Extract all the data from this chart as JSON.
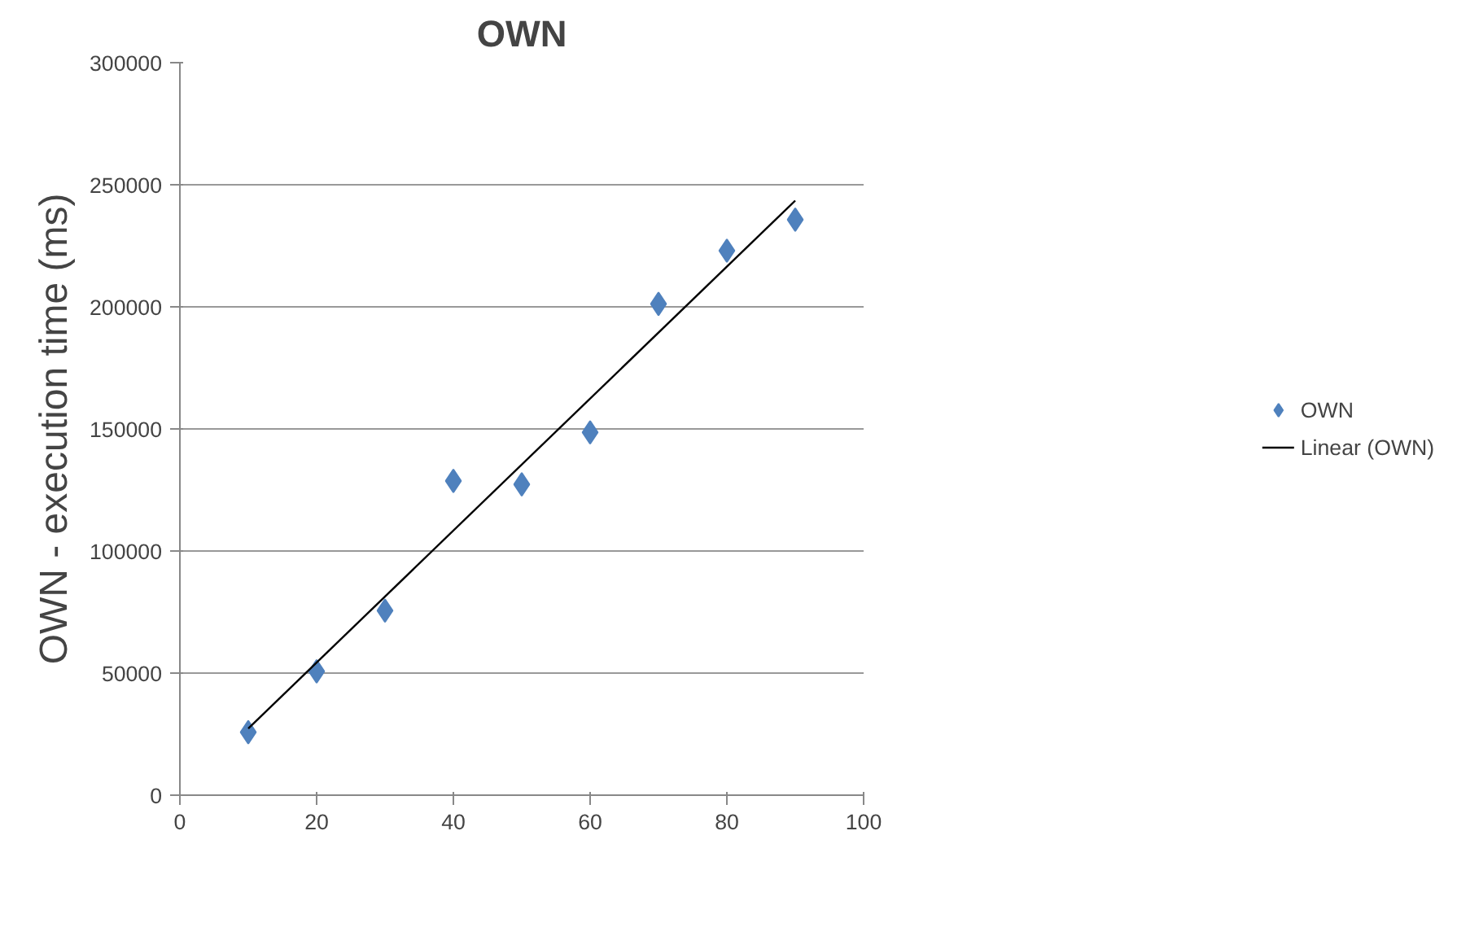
{
  "chart_data": {
    "type": "scatter",
    "title": "OWN",
    "ylabel": "OWN - execution time (ms)",
    "x": [
      10,
      20,
      30,
      40,
      50,
      60,
      70,
      80,
      90
    ],
    "series": [
      {
        "name": "OWN",
        "color": "#4f81bd",
        "marker": "diamond",
        "values": [
          25800,
          50700,
          75600,
          128700,
          127300,
          148600,
          201200,
          223000,
          235700
        ]
      },
      {
        "name": "Linear (OWN)",
        "type": "line",
        "color": "#000000",
        "line_style": "solid",
        "x": [
          10,
          90
        ],
        "values": [
          27300,
          243500
        ]
      }
    ],
    "xlim": [
      0,
      100
    ],
    "xticks": [
      0,
      20,
      40,
      60,
      80,
      100
    ],
    "ylim": [
      0,
      300000
    ],
    "yticks": [
      0,
      50000,
      100000,
      150000,
      200000,
      250000,
      300000
    ],
    "grid": "y",
    "legend": "right"
  }
}
